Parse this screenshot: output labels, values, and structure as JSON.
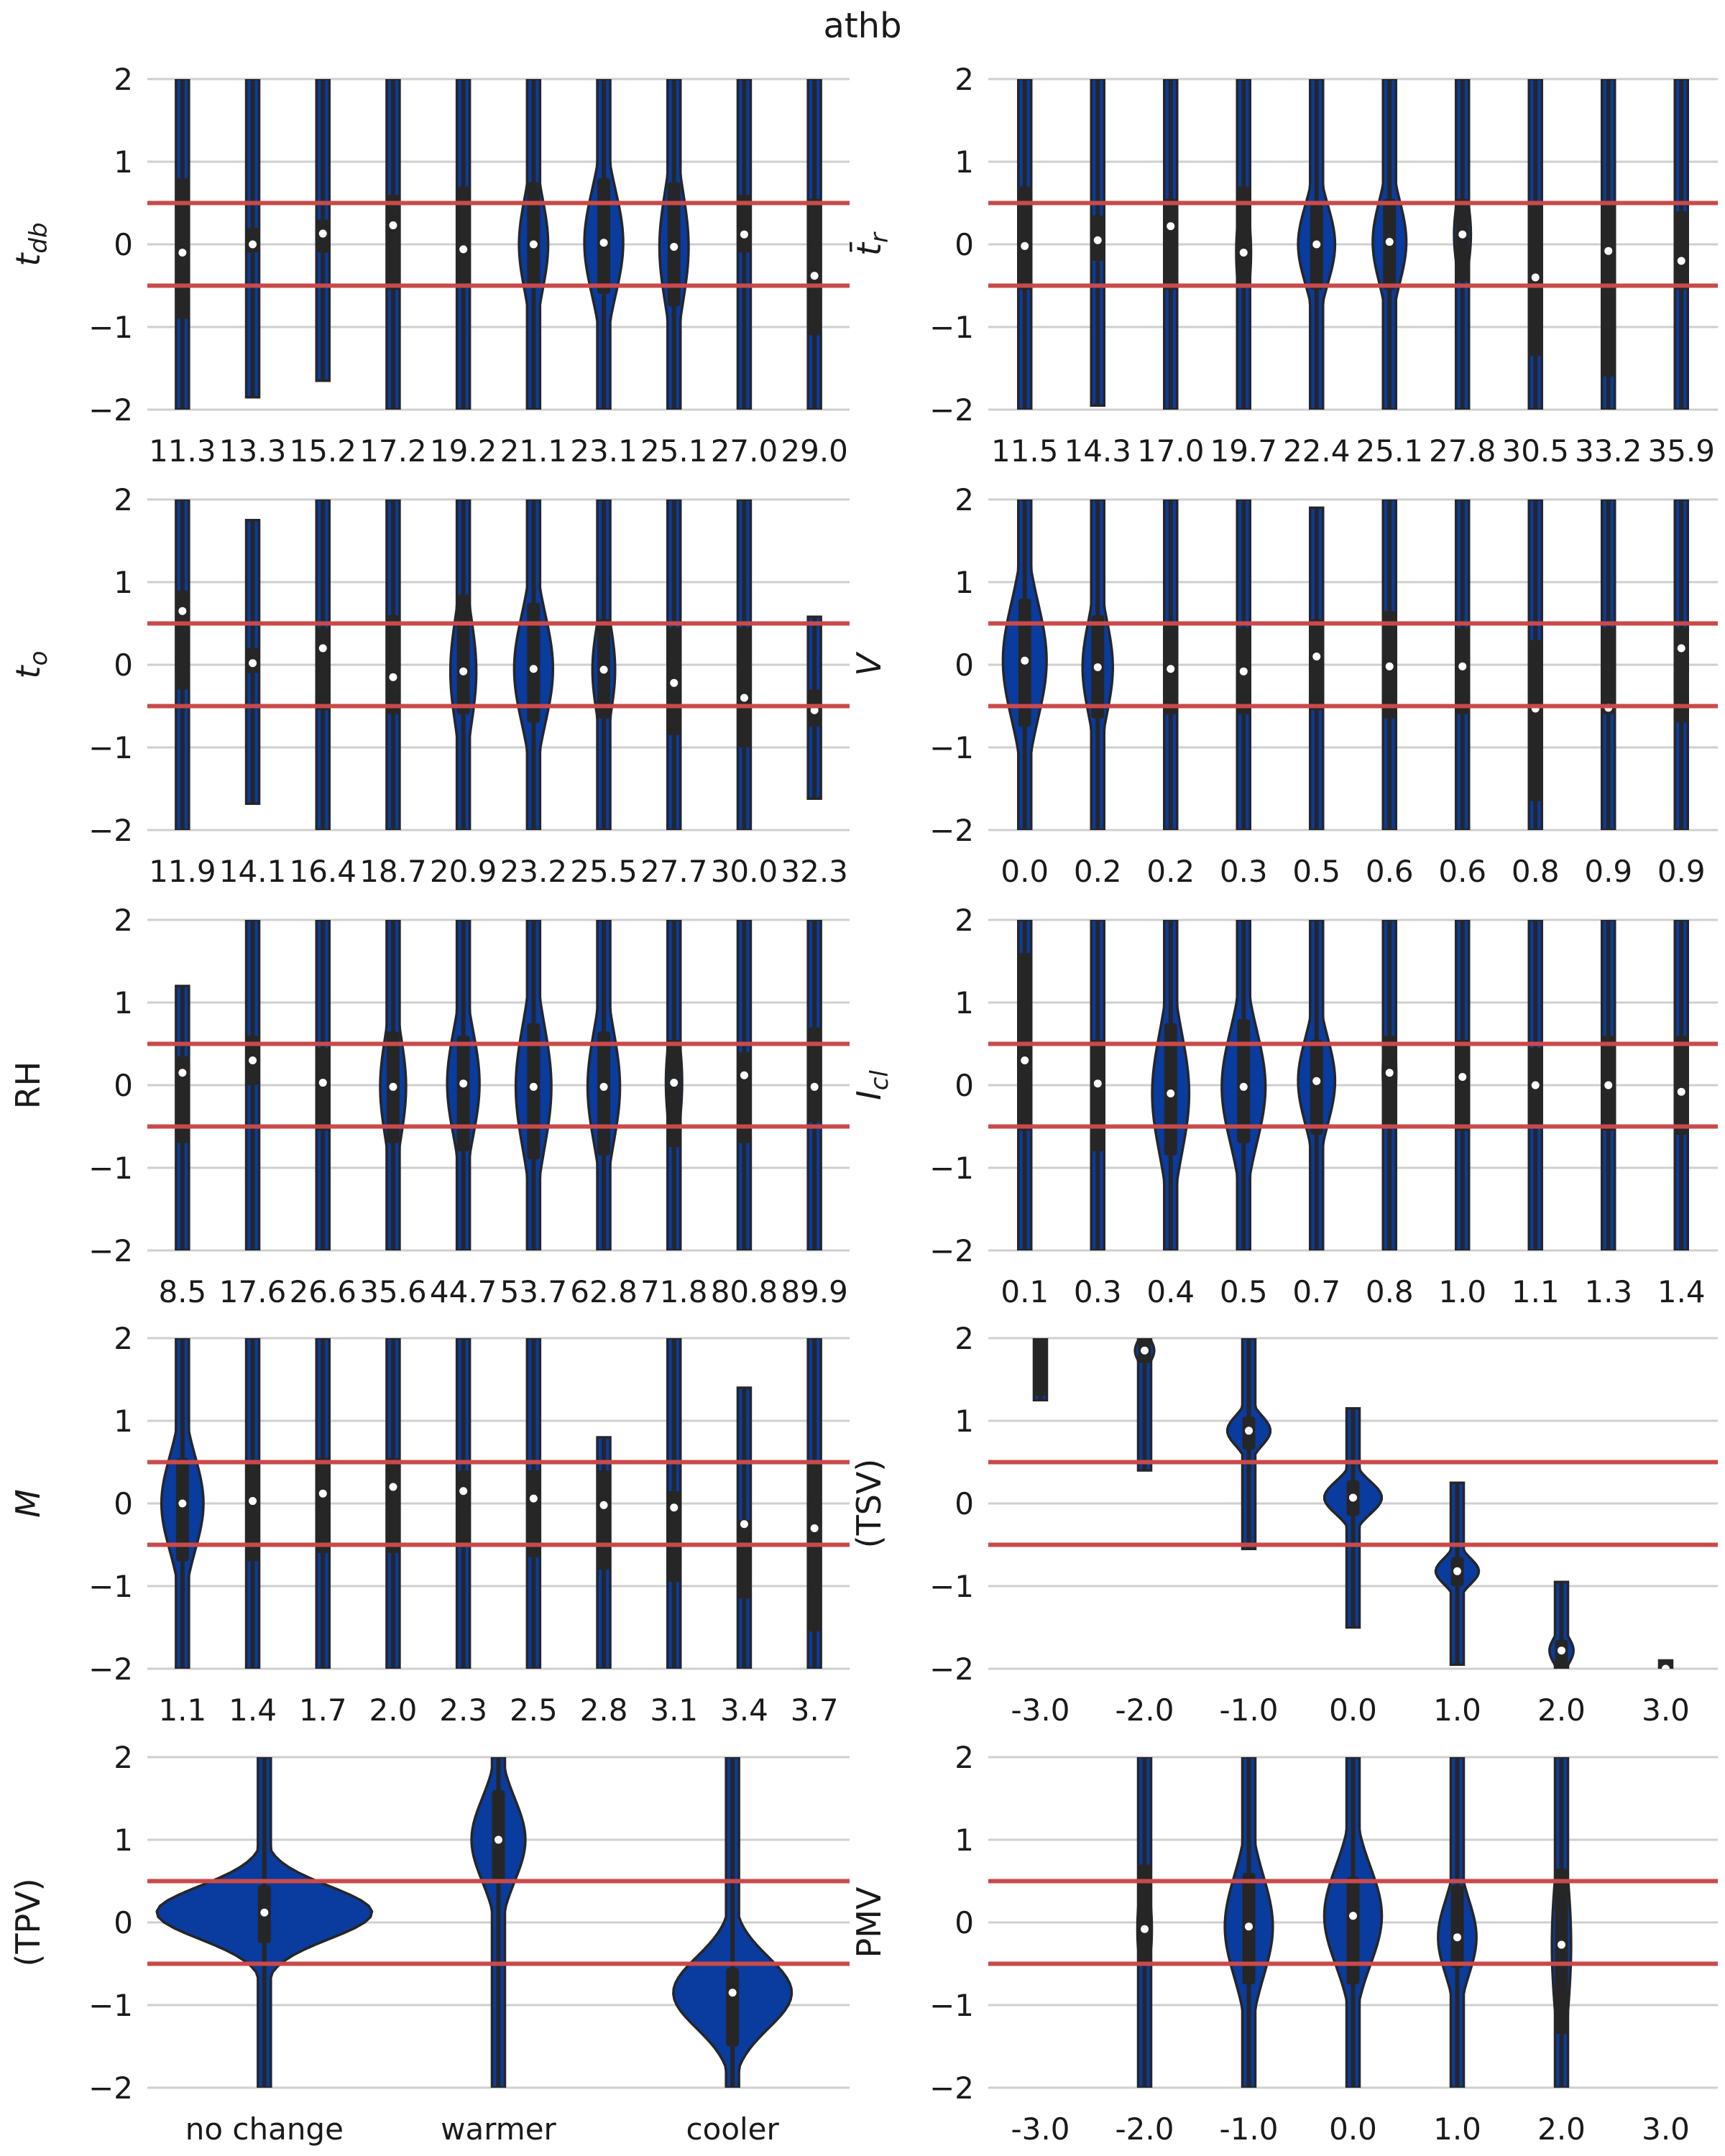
{
  "figure": {
    "title": "athb",
    "colors": {
      "violin_fill": "#0a3b9e",
      "violin_edge": "#262626",
      "box": "#262626",
      "median": "#ffffff",
      "reference_line": "#c94a4a",
      "grid": "#cfcfcf"
    },
    "reference_lines": [
      0.5,
      -0.5
    ]
  },
  "chart_data": [
    {
      "type": "violin",
      "ylabel": "t_db",
      "ylim": [
        -2,
        2
      ],
      "yticks": [
        2,
        1,
        0,
        -1,
        -2
      ],
      "grid": true,
      "categories": [
        "11.3",
        "13.3",
        "15.2",
        "17.2",
        "19.2",
        "21.1",
        "23.1",
        "25.1",
        "27.0",
        "29.0"
      ],
      "median": [
        -0.1,
        0.0,
        0.13,
        0.23,
        -0.06,
        0.0,
        0.02,
        -0.03,
        0.12,
        -0.38
      ],
      "q1": [
        -0.9,
        -0.1,
        -0.1,
        -0.55,
        -0.5,
        -0.5,
        -0.6,
        -0.75,
        -0.1,
        -1.1
      ],
      "q3": [
        0.8,
        0.2,
        0.3,
        0.6,
        0.7,
        0.75,
        0.8,
        0.75,
        0.6,
        0.55
      ],
      "whisker_low": [
        -2,
        -1.85,
        -1.65,
        -2,
        -2,
        -2,
        -2,
        -2,
        -2,
        -2
      ],
      "whisker_high": [
        2,
        2,
        2,
        2,
        2,
        2,
        2,
        2,
        2,
        2
      ],
      "peak_density": [
        0.12,
        0.12,
        0.12,
        0.12,
        0.15,
        0.45,
        0.6,
        0.45,
        0.2,
        0.15
      ]
    },
    {
      "type": "violin",
      "ylabel": "t̄_r",
      "ylim": [
        -2,
        2
      ],
      "yticks": [
        2,
        1,
        0,
        -1,
        -2
      ],
      "grid": true,
      "categories": [
        "11.5",
        "14.3",
        "17.0",
        "19.7",
        "22.4",
        "25.1",
        "27.8",
        "30.5",
        "33.2",
        "35.9"
      ],
      "median": [
        -0.02,
        0.05,
        0.22,
        -0.1,
        0.0,
        0.03,
        0.12,
        -0.4,
        -0.08,
        -0.2
      ],
      "q1": [
        -0.55,
        -0.2,
        -0.55,
        -0.5,
        -0.55,
        -0.55,
        -0.45,
        -1.35,
        -1.6,
        -0.55
      ],
      "q3": [
        0.7,
        0.35,
        0.55,
        0.7,
        0.5,
        0.55,
        0.55,
        0.5,
        0.5,
        0.4
      ],
      "whisker_low": [
        -2,
        -1.95,
        -2,
        -2,
        -2,
        -2,
        -2,
        -2,
        -2,
        -2
      ],
      "whisker_high": [
        2,
        2,
        2,
        2,
        2,
        2,
        2,
        2,
        2,
        2
      ],
      "peak_density": [
        0.12,
        0.12,
        0.12,
        0.22,
        0.55,
        0.5,
        0.25,
        0.15,
        0.15,
        0.12
      ]
    },
    {
      "type": "violin",
      "ylabel": "t_o",
      "ylim": [
        -2,
        2
      ],
      "yticks": [
        2,
        1,
        0,
        -1,
        -2
      ],
      "grid": true,
      "categories": [
        "11.9",
        "14.1",
        "16.4",
        "18.7",
        "20.9",
        "23.2",
        "25.5",
        "27.7",
        "30.0",
        "32.3"
      ],
      "median": [
        0.65,
        0.02,
        0.2,
        -0.15,
        -0.08,
        -0.05,
        -0.06,
        -0.22,
        -0.4,
        -0.55
      ],
      "q1": [
        -0.3,
        -0.1,
        -0.55,
        -0.6,
        -0.6,
        -0.7,
        -0.65,
        -0.85,
        -1.0,
        -0.75
      ],
      "q3": [
        0.9,
        0.2,
        0.45,
        0.6,
        0.85,
        0.75,
        0.55,
        0.45,
        0.45,
        -0.3
      ],
      "whisker_low": [
        -2,
        -1.68,
        -2,
        -2,
        -2,
        -2,
        -2,
        -2,
        -2,
        -1.62
      ],
      "whisker_high": [
        2,
        1.75,
        2,
        2,
        2,
        2,
        2,
        2,
        2,
        0.58
      ],
      "peak_density": [
        0.12,
        0.12,
        0.12,
        0.18,
        0.4,
        0.6,
        0.35,
        0.18,
        0.15,
        0.12
      ]
    },
    {
      "type": "violin",
      "ylabel": "V",
      "ylim": [
        -2,
        2
      ],
      "yticks": [
        2,
        1,
        0,
        -1,
        -2
      ],
      "grid": true,
      "categories": [
        "0.0",
        "0.2",
        "0.2",
        "0.3",
        "0.5",
        "0.6",
        "0.6",
        "0.8",
        "0.9",
        "0.9"
      ],
      "median": [
        0.05,
        -0.03,
        -0.05,
        -0.08,
        0.1,
        -0.02,
        -0.02,
        -0.53,
        -0.52,
        0.2
      ],
      "q1": [
        -0.75,
        -0.65,
        -0.6,
        -0.6,
        -0.55,
        -0.65,
        -0.6,
        -1.65,
        -0.6,
        -0.7
      ],
      "q3": [
        0.8,
        0.6,
        0.5,
        0.45,
        0.55,
        0.65,
        0.45,
        0.3,
        0.45,
        0.45
      ],
      "whisker_low": [
        -2,
        -2,
        -2,
        -2,
        -2,
        -2,
        -2,
        -2,
        -2,
        -2
      ],
      "whisker_high": [
        2,
        2,
        2,
        2,
        1.9,
        2,
        2,
        2,
        2,
        2
      ],
      "peak_density": [
        0.65,
        0.45,
        0.18,
        0.15,
        0.15,
        0.15,
        0.15,
        0.15,
        0.15,
        0.15
      ]
    },
    {
      "type": "violin",
      "ylabel": "RH",
      "ylim": [
        -2,
        2
      ],
      "yticks": [
        2,
        1,
        0,
        -1,
        -2
      ],
      "grid": true,
      "categories": [
        "8.5",
        "17.6",
        "26.6",
        "35.6",
        "44.7",
        "53.7",
        "62.8",
        "71.8",
        "80.8",
        "89.9"
      ],
      "median": [
        0.15,
        0.3,
        0.03,
        -0.02,
        0.02,
        -0.02,
        -0.02,
        0.03,
        0.12,
        -0.02
      ],
      "q1": [
        -0.7,
        0.0,
        -0.55,
        -0.7,
        -0.8,
        -0.9,
        -0.85,
        -0.75,
        -0.7,
        -0.45
      ],
      "q3": [
        0.35,
        0.6,
        0.45,
        0.65,
        0.6,
        0.75,
        0.65,
        0.55,
        0.4,
        0.7
      ],
      "whisker_low": [
        -2,
        -2,
        -2,
        -2,
        -2,
        -2,
        -2,
        -2,
        -2,
        -2
      ],
      "whisker_high": [
        1.2,
        2,
        2,
        2,
        2,
        2,
        2,
        2,
        2,
        2
      ],
      "peak_density": [
        0.12,
        0.12,
        0.2,
        0.4,
        0.5,
        0.55,
        0.5,
        0.25,
        0.15,
        0.15
      ]
    },
    {
      "type": "violin",
      "ylabel": "I_cl",
      "ylim": [
        -2,
        2
      ],
      "yticks": [
        2,
        1,
        0,
        -1,
        -2
      ],
      "grid": true,
      "categories": [
        "0.1",
        "0.3",
        "0.4",
        "0.5",
        "0.7",
        "0.8",
        "1.0",
        "1.1",
        "1.3",
        "1.4"
      ],
      "median": [
        0.3,
        0.02,
        -0.1,
        -0.02,
        0.05,
        0.15,
        0.1,
        0.0,
        0.0,
        -0.08
      ],
      "q1": [
        -0.55,
        -0.8,
        -0.85,
        -0.7,
        -0.6,
        -0.5,
        -0.55,
        -0.5,
        -0.55,
        -0.6
      ],
      "q3": [
        1.6,
        0.55,
        0.75,
        0.8,
        0.55,
        0.6,
        0.55,
        0.45,
        0.6,
        0.6
      ],
      "whisker_low": [
        -2,
        -2,
        -2,
        -2,
        -2,
        -2,
        -2,
        -2,
        -2,
        -2
      ],
      "whisker_high": [
        2,
        2,
        2,
        2,
        2,
        2,
        2,
        2,
        2,
        2
      ],
      "peak_density": [
        0.15,
        0.15,
        0.55,
        0.65,
        0.55,
        0.2,
        0.15,
        0.15,
        0.15,
        0.15
      ]
    },
    {
      "type": "violin",
      "ylabel": "M",
      "ylim": [
        -2,
        2
      ],
      "yticks": [
        2,
        1,
        0,
        -1,
        -2
      ],
      "grid": true,
      "categories": [
        "1.1",
        "1.4",
        "1.7",
        "2.0",
        "2.3",
        "2.5",
        "2.8",
        "3.1",
        "3.4",
        "3.7"
      ],
      "median": [
        0.0,
        0.03,
        0.12,
        0.2,
        0.15,
        0.06,
        -0.02,
        -0.05,
        -0.25,
        -0.3
      ],
      "q1": [
        -0.7,
        -0.7,
        -0.6,
        -0.6,
        -0.5,
        -0.65,
        -0.8,
        -0.95,
        -1.15,
        -1.55
      ],
      "q3": [
        0.55,
        0.5,
        0.55,
        0.55,
        0.4,
        0.4,
        0.4,
        0.15,
        -0.2,
        0.5
      ],
      "whisker_low": [
        -2,
        -2,
        -2,
        -2,
        -2,
        -2,
        -2,
        -2,
        -2,
        -2
      ],
      "whisker_high": [
        2,
        2,
        2,
        2,
        2,
        2,
        0.8,
        2,
        1.4,
        2
      ],
      "peak_density": [
        0.65,
        0.18,
        0.15,
        0.15,
        0.15,
        0.15,
        0.15,
        0.15,
        0.15,
        0.15
      ]
    },
    {
      "type": "violin",
      "ylabel": "(TSV)",
      "ylim": [
        -2,
        2
      ],
      "yticks": [
        2,
        1,
        0,
        -1,
        -2
      ],
      "grid": true,
      "categories": [
        "-3.0",
        "-2.0",
        "-1.0",
        "0.0",
        "1.0",
        "2.0",
        "3.0"
      ],
      "median": [
        2.3,
        1.85,
        0.88,
        0.07,
        -0.82,
        -1.78,
        -2.0
      ],
      "q1": [
        1.3,
        1.7,
        0.65,
        -0.15,
        -1.0,
        -2.0,
        -2.0
      ],
      "q3": [
        2.0,
        2.0,
        1.05,
        0.28,
        -0.65,
        -1.65,
        -1.9
      ],
      "whisker_low": [
        1.25,
        0.4,
        -0.55,
        -1.5,
        -1.95,
        -2.0,
        -2.0
      ],
      "whisker_high": [
        2.0,
        2.0,
        2.0,
        1.15,
        0.25,
        -0.95,
        -1.9
      ],
      "peak_density": [
        0.08,
        0.2,
        0.45,
        0.6,
        0.45,
        0.25,
        0.08
      ]
    },
    {
      "type": "violin",
      "ylabel": "(TPV)",
      "ylim": [
        -2,
        2
      ],
      "yticks": [
        2,
        1,
        0,
        -1,
        -2
      ],
      "grid": true,
      "categories": [
        "no change",
        "warmer",
        "cooler"
      ],
      "median": [
        0.12,
        1.0,
        -0.85
      ],
      "q1": [
        -0.25,
        0.5,
        -1.5
      ],
      "q3": [
        0.45,
        1.6,
        -0.55
      ],
      "whisker_low": [
        -2,
        -2,
        -2
      ],
      "whisker_high": [
        2,
        2,
        2
      ],
      "peak_density": [
        1.0,
        0.25,
        0.55
      ]
    },
    {
      "type": "violin",
      "ylabel": "PMV",
      "ylim": [
        -2,
        2
      ],
      "yticks": [
        2,
        1,
        0,
        -1,
        -2
      ],
      "grid": true,
      "categories": [
        "-3.0",
        "-2.0",
        "-1.0",
        "0.0",
        "1.0",
        "2.0",
        "3.0"
      ],
      "median": [
        null,
        -0.08,
        -0.05,
        0.08,
        -0.18,
        -0.27,
        null
      ],
      "q1": [
        null,
        -0.5,
        -0.75,
        -0.75,
        -0.55,
        -1.35,
        null
      ],
      "q3": [
        null,
        0.7,
        0.6,
        0.55,
        0.45,
        0.65,
        null
      ],
      "whisker_low": [
        null,
        -2,
        -2,
        -2,
        -2,
        -2,
        null
      ],
      "whisker_high": [
        null,
        2,
        2,
        2,
        2,
        2,
        null
      ],
      "peak_density": [
        0,
        0.15,
        0.5,
        0.6,
        0.4,
        0.2,
        0
      ]
    }
  ]
}
